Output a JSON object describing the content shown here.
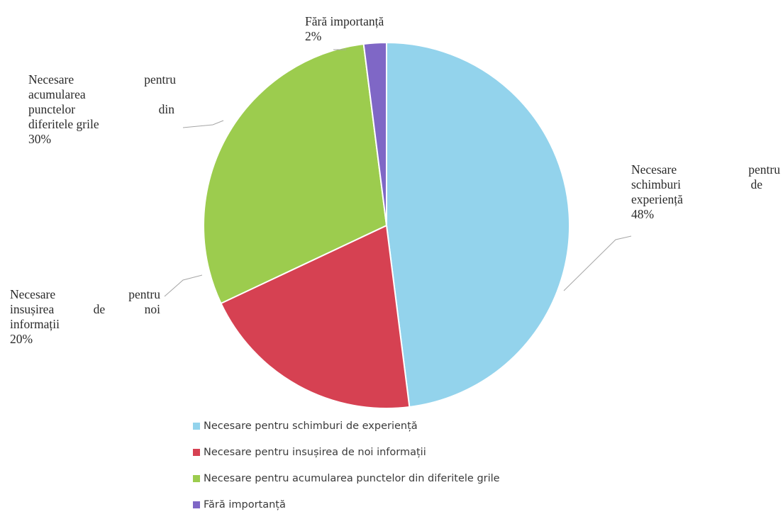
{
  "chart_data": {
    "type": "pie",
    "title": "",
    "slices": [
      {
        "name": "Necesare pentru schimburi de experiență",
        "value": 48,
        "color": "#93d3ec"
      },
      {
        "name": "Necesare pentru insușirea de noi informații",
        "value": 20,
        "color": "#d64152"
      },
      {
        "name": "Necesare pentru acumularea punctelor din diferitele grile",
        "value": 30,
        "color": "#9ccc4e"
      },
      {
        "name": "Fără importanță",
        "value": 2,
        "color": "#7f67c6"
      }
    ],
    "legend_position": "bottom",
    "data_labels": [
      {
        "lines": [
          [
            "Necesare",
            "pentru"
          ],
          [
            "schimburi",
            "de"
          ],
          [
            "experiență"
          ]
        ],
        "percent": "48%"
      },
      {
        "lines": [
          [
            "Necesare",
            "pentru"
          ],
          [
            "insușirea",
            "de",
            "noi"
          ],
          [
            "informații"
          ]
        ],
        "percent": "20%"
      },
      {
        "lines": [
          [
            "Necesare",
            "pentru"
          ],
          [
            "acumularea"
          ],
          [
            "punctelor",
            "din"
          ],
          [
            "diferitele grile"
          ]
        ],
        "percent": "30%"
      },
      {
        "lines": [
          [
            "Fără importanță"
          ]
        ],
        "percent": "2%"
      }
    ]
  }
}
